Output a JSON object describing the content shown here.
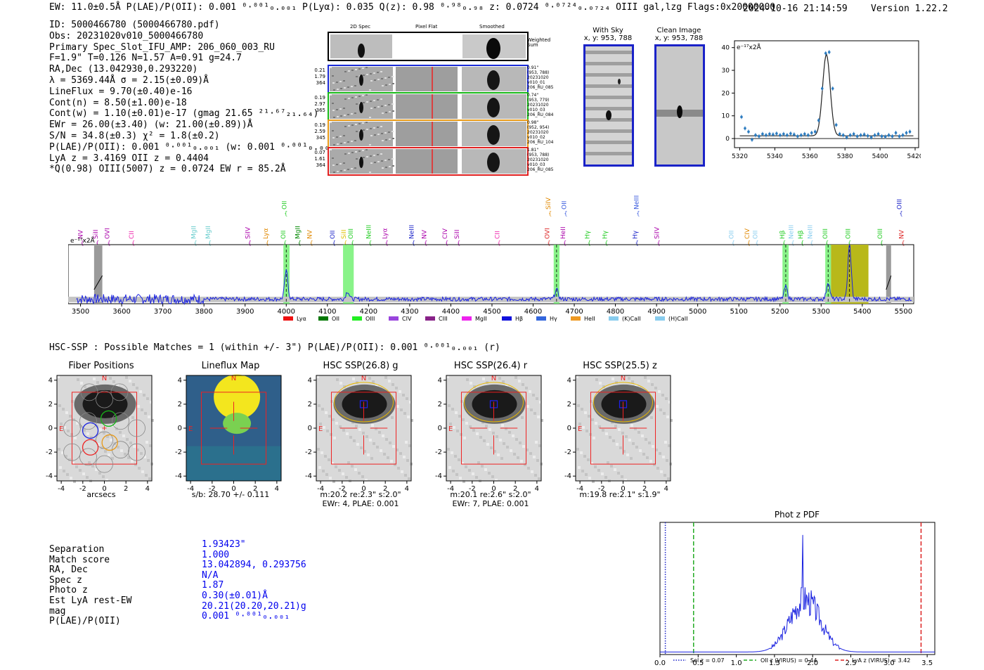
{
  "header": {
    "summary": "EW: 11.0±0.5Å  P(LAE)/P(OII): 0.001 ⁰·⁰⁰¹₀.₀₀₁  P(Lyα): 0.035  Q(z): 0.98 ⁰·⁹⁸₀.₉₈  z: 0.0724 ⁰·⁰⁷²⁴₀.₀₇₂₄ OIII  gal,lzg  Flags:0x20000000",
    "datetime": "2024-10-16 21:14:59",
    "version": "Version 1.22.2"
  },
  "info": [
    "ID: 5000466780 (5000466780.pdf)",
    "Obs: 20231020v010_5000466780",
    "Primary Spec_Slot_IFU_AMP: 206_060_003_RU",
    "F=1.9\"  T=0.126  N=1.57  A=0.91  g=24.7",
    "RA,Dec (13.042930,0.293220)",
    "λ = 5369.44Å  σ = 2.15(±0.09)Å",
    "LineFlux = 9.70(±0.40)e-16",
    "Cont(n) = 8.50(±1.00)e-18",
    "Cont(w) = 1.10(±0.01)e-17 (gmag 21.65 ²¹·⁶⁷₂₁.₆₄)",
    "EWr = 26.00(±3.40) (w: 21.00(±0.89))Å",
    "S/N = 34.8(±0.3)  χ² = 1.8(±0.2)",
    "P(LAE)/P(OII): 0.001 ⁰·⁰⁰¹₀.₀₀₁ (w: 0.001 ⁰·⁰⁰¹₀.₀₀₁)",
    "LyA z = 3.4169  OII z = 0.4404",
    "*Q(0.98) OIII(5007) z = 0.0724  EW r = 85.2Å"
  ],
  "fiber_strip": {
    "col_titles": [
      "2D Spec",
      "Pixel Flat",
      "Smoothed"
    ],
    "weighted_label": "Weighted Sum",
    "rows": [
      {
        "stats": [
          "0.21",
          "1.79",
          "364"
        ],
        "meta": [
          "0.91\"",
          "(953, 788)",
          "20231020",
          "v010_01",
          "206_RU_085"
        ],
        "color": "#1a2ad6"
      },
      {
        "stats": [
          "0.19",
          "2.97",
          "365"
        ],
        "meta": [
          "0.74\"",
          "(953, 779)",
          "20231020",
          "v010_03",
          "206_RU_084"
        ],
        "color": "#18b818"
      },
      {
        "stats": [
          "0.19",
          "2.59",
          "345"
        ],
        "meta": [
          "0.98\"",
          "(952, 954)",
          "20231020",
          "v010_02",
          "206_RU_104"
        ],
        "color": "#e79a18"
      },
      {
        "stats": [
          "0.07",
          "1.61",
          "364"
        ],
        "meta": [
          "1.81\"",
          "(953, 788)",
          "20231020",
          "v010_03",
          "206_RU_085"
        ],
        "color": "#e02020"
      }
    ]
  },
  "sky_panels": {
    "with_sky": {
      "title": "With Sky",
      "coords": "x, y: 953, 788"
    },
    "clean": {
      "title": "Clean Image",
      "coords": "x, y: 953, 788"
    }
  },
  "line_fit": {
    "unit_label": "e⁻¹⁷x2Å",
    "chart_data": {
      "type": "line",
      "title": "",
      "xlim": [
        5317,
        5422
      ],
      "ylim": [
        -4,
        43
      ],
      "xticks": [
        5320,
        5340,
        5360,
        5380,
        5400,
        5420
      ],
      "yticks": [
        0,
        10,
        20,
        30,
        40
      ],
      "model_peak_x": 5369.4,
      "model_peak_y": 37.0,
      "model_sigma": 2.15,
      "model_baseline": 1.2,
      "points_x": [
        5321,
        5323,
        5325,
        5327,
        5329,
        5331,
        5333,
        5335,
        5337,
        5339,
        5341,
        5343,
        5345,
        5347,
        5349,
        5351,
        5353,
        5355,
        5357,
        5359,
        5361,
        5363,
        5365,
        5367,
        5369,
        5371,
        5373,
        5375,
        5377,
        5379,
        5381,
        5383,
        5385,
        5387,
        5389,
        5391,
        5393,
        5395,
        5397,
        5399,
        5401,
        5403,
        5405,
        5407,
        5409,
        5411,
        5413,
        5415,
        5417
      ],
      "points_y": [
        9.5,
        4.5,
        3.0,
        -0.5,
        1.5,
        1.0,
        2.0,
        1.5,
        2.0,
        1.8,
        2.2,
        1.5,
        2.0,
        1.5,
        2.2,
        1.8,
        1.0,
        1.5,
        2.0,
        1.5,
        2.5,
        3.0,
        8.0,
        22.0,
        37.5,
        38.0,
        22.0,
        6.0,
        2.0,
        1.5,
        0.5,
        1.5,
        2.0,
        1.0,
        1.5,
        1.8,
        1.2,
        0.5,
        1.5,
        2.0,
        1.0,
        0.8,
        1.5,
        1.0,
        2.5,
        1.0,
        1.5,
        2.5,
        3.0
      ]
    }
  },
  "spectrum": {
    "unit_label": "e⁻¹⁷x2Å",
    "chart_data": {
      "type": "line",
      "title": "",
      "xlim": [
        3470,
        5525
      ],
      "ylim": [
        -3,
        35
      ],
      "xticks": [
        3500,
        3600,
        3700,
        3800,
        3900,
        4000,
        4100,
        4200,
        4300,
        4400,
        4500,
        4600,
        4700,
        4800,
        4900,
        5000,
        5100,
        5200,
        5300,
        5400,
        5500
      ],
      "yticks": [
        0,
        20
      ],
      "line_peaks": [
        {
          "x": 4000,
          "h": 18
        },
        {
          "x": 4149,
          "h": 5
        },
        {
          "x": 4657,
          "h": 6
        },
        {
          "x": 5214,
          "h": 8
        },
        {
          "x": 5317,
          "h": 11
        },
        {
          "x": 5369,
          "h": 35
        }
      ],
      "green_bands": [
        [
          3993,
          4008
        ],
        [
          4138,
          4164
        ],
        [
          4650,
          4664
        ],
        [
          5206,
          5221
        ],
        [
          5310,
          5324
        ]
      ],
      "gray_bands": [
        [
          3533,
          3553
        ],
        [
          5458,
          5470
        ]
      ],
      "olive_band": [
        5324,
        5415
      ],
      "dashed_lines": [
        4000,
        4657,
        5214,
        5317,
        5369
      ],
      "line_labels": [
        {
          "x": 3505,
          "t": "NV",
          "c": "#aa00aa",
          "row": 0
        },
        {
          "x": 3542,
          "t": "SiII",
          "c": "#aa00aa",
          "row": 0
        },
        {
          "x": 3570,
          "t": "OVI",
          "c": "#aa00aa",
          "row": 0
        },
        {
          "x": 3629,
          "t": "CII",
          "c": "#ee22aa",
          "row": 0
        },
        {
          "x": 3780,
          "t": "MgII",
          "c": "#66cccc",
          "row": 0
        },
        {
          "x": 3815,
          "t": "MgII",
          "c": "#66cccc",
          "row": 0
        },
        {
          "x": 3912,
          "t": "SiIV",
          "c": "#aa00aa",
          "row": 0
        },
        {
          "x": 3955,
          "t": "Lyα",
          "c": "#e08800",
          "row": 0
        },
        {
          "x": 3998,
          "t": "OII",
          "c": "#22cc22",
          "row": 0
        },
        {
          "x": 4000,
          "t": "OII",
          "c": "#22cc22",
          "row": 1
        },
        {
          "x": 4033,
          "t": "MgII",
          "c": "#008800",
          "row": 0
        },
        {
          "x": 4062,
          "t": "NV",
          "c": "#e08800",
          "row": 0
        },
        {
          "x": 4117,
          "t": "OII",
          "c": "#1a22c8",
          "row": 0
        },
        {
          "x": 4145,
          "t": "SiII",
          "c": "#e0c000",
          "row": 0
        },
        {
          "x": 4162,
          "t": "OIII",
          "c": "#22cc22",
          "row": 0
        },
        {
          "x": 4205,
          "t": "NeIII",
          "c": "#22cc22",
          "row": 0
        },
        {
          "x": 4245,
          "t": "Lyα",
          "c": "#aa00aa",
          "row": 0
        },
        {
          "x": 4310,
          "t": "NeIII",
          "c": "#1a22c8",
          "row": 0
        },
        {
          "x": 4340,
          "t": "NV",
          "c": "#aa00aa",
          "row": 0
        },
        {
          "x": 4391,
          "t": "CIV",
          "c": "#aa00aa",
          "row": 0
        },
        {
          "x": 4420,
          "t": "SiII",
          "c": "#aa00aa",
          "row": 0
        },
        {
          "x": 4518,
          "t": "CII",
          "c": "#ee22aa",
          "row": 0
        },
        {
          "x": 4639,
          "t": "OVI",
          "c": "#dd2222",
          "row": 0
        },
        {
          "x": 4642,
          "t": "SiIV",
          "c": "#e08800",
          "row": 1
        },
        {
          "x": 4678,
          "t": "HeII",
          "c": "#aa00aa",
          "row": 0
        },
        {
          "x": 4680,
          "t": "OII",
          "c": "#3355dd",
          "row": 1
        },
        {
          "x": 4737,
          "t": "Hγ",
          "c": "#22cc22",
          "row": 0
        },
        {
          "x": 4779,
          "t": "Hγ",
          "c": "#22cc22",
          "row": 0
        },
        {
          "x": 4853,
          "t": "Hγ",
          "c": "#1a22c8",
          "row": 0
        },
        {
          "x": 4856,
          "t": "NeIII",
          "c": "#3355dd",
          "row": 1
        },
        {
          "x": 4906,
          "t": "SiIV",
          "c": "#aa00aa",
          "row": 0
        },
        {
          "x": 5087,
          "t": "OII",
          "c": "#88ccee",
          "row": 0
        },
        {
          "x": 5125,
          "t": "CIV",
          "c": "#e08800",
          "row": 0
        },
        {
          "x": 5145,
          "t": "OII",
          "c": "#88ccee",
          "row": 0
        },
        {
          "x": 5211,
          "t": "Hβ",
          "c": "#22cc22",
          "row": 0
        },
        {
          "x": 5232,
          "t": "NeIII",
          "c": "#88ccee",
          "row": 0
        },
        {
          "x": 5255,
          "t": "Hβ",
          "c": "#22cc22",
          "row": 0
        },
        {
          "x": 5278,
          "t": "NeIII",
          "c": "#88ccee",
          "row": 0
        },
        {
          "x": 5315,
          "t": "OIII",
          "c": "#22cc22",
          "row": 0
        },
        {
          "x": 5370,
          "t": "OIII",
          "c": "#22cc22",
          "row": 0
        },
        {
          "x": 5448,
          "t": "OIII",
          "c": "#22cc22",
          "row": 0
        },
        {
          "x": 5500,
          "t": "NV",
          "c": "#dd2222",
          "row": 0
        },
        {
          "x": 5495,
          "t": "OIII",
          "c": "#1a22c8",
          "row": 1
        }
      ],
      "legend": [
        {
          "t": "Lyα",
          "c": "#ee1111"
        },
        {
          "t": "OII",
          "c": "#007700"
        },
        {
          "t": "OIII",
          "c": "#22ee22"
        },
        {
          "t": "CIV",
          "c": "#9944dd"
        },
        {
          "t": "CIII",
          "c": "#882288"
        },
        {
          "t": "MgII",
          "c": "#ee22ee"
        },
        {
          "t": "Hβ",
          "c": "#1111dd"
        },
        {
          "t": "Hγ",
          "c": "#3366dd"
        },
        {
          "t": "HeII",
          "c": "#ee9922"
        },
        {
          "t": "(K)CaII",
          "c": "#88ccee"
        },
        {
          "t": "(H)CaII",
          "c": "#88ccee"
        }
      ]
    }
  },
  "hsc": {
    "summary": "HSC-SSP : Possible Matches = 1 (within +/- 3\")  P(LAE)/P(OII): 0.001 ⁰·⁰⁰¹₀.₀₀₁ (r)",
    "panels": [
      {
        "title": "Fiber Positions",
        "caption1": "arcsecs",
        "caption2": "",
        "kind": "fiber"
      },
      {
        "title": "Lineflux Map",
        "caption1": "s/b: 28.70 +/- 0.111",
        "caption2": "",
        "kind": "flux"
      },
      {
        "title": "HSC SSP(26.8) g",
        "caption1": "m:20.2  re:2.3\"  s:2.0\"",
        "caption2": "EWr: 4, PLAE: 0.001",
        "kind": "hsc"
      },
      {
        "title": "HSC SSP(26.4) r",
        "caption1": "m:20.1  re:2.6\"  s:2.0\"",
        "caption2": "EWr: 7, PLAE: 0.001",
        "kind": "hsc"
      },
      {
        "title": "HSC SSP(25.5) z",
        "caption1": "m:19.8  re:2.1\"  s:1.9\"",
        "caption2": "",
        "kind": "hsc"
      }
    ],
    "axis_ticks": [
      "-4",
      "-2",
      "0",
      "2",
      "4"
    ],
    "compass": {
      "n": "N",
      "e": "E"
    }
  },
  "match_table": {
    "labels": [
      "Separation",
      "Match score",
      "RA, Dec",
      "Spec z",
      "Photo z",
      "Est LyA rest-EW",
      "mag",
      "P(LAE)/P(OII)"
    ],
    "values": [
      "1.93423\"",
      "1.000",
      "13.042894, 0.293756",
      "N/A",
      "1.87",
      "0.30(±0.01)Å",
      "20.21(20.20,20.21)g",
      "0.001 ⁰·⁰⁰¹₀.₀₀₁"
    ]
  },
  "photz": {
    "chart_data": {
      "type": "line",
      "title": "Phot z PDF",
      "xlim": [
        0.0,
        3.6
      ],
      "ylim": [
        0,
        1.05
      ],
      "xticks": [
        0.0,
        0.5,
        1.0,
        1.5,
        2.0,
        2.5,
        3.0,
        3.5
      ],
      "vlines": [
        {
          "x": 0.07,
          "c": "#1a22c8",
          "style": "dotted",
          "label": "Sol z = 0.07"
        },
        {
          "x": 0.44,
          "c": "#22aa22",
          "style": "dashed",
          "label": "OII z (VIRUS) = 0.44"
        },
        {
          "x": 3.42,
          "c": "#dd2222",
          "style": "dashed",
          "label": "LyA z (VIRUS) = 3.42"
        }
      ],
      "pdf_peak_z": 1.87,
      "pdf_peak_val": 1.0
    }
  }
}
